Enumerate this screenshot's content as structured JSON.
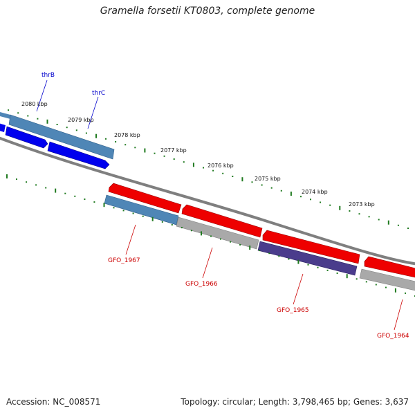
{
  "title": "Gramella forsetii KT0803, complete genome",
  "footer": {
    "accession": "Accession: NC_008571",
    "summary": "Topology: circular; Length: 3,798,465 bp; Genes: 3,637"
  },
  "colors": {
    "backbone": "#7f7f7f",
    "tick_major": "#1f7a1f",
    "forward_cds": "#0000ee",
    "forward_rna": "#4f86b6",
    "reverse_cds": "#ee0000",
    "reverse_other": "#a9a9a9",
    "reverse_purple": "#4a3c8c",
    "label_forward": "#0000cc",
    "label_reverse": "#cc0000"
  },
  "scale_labels": [
    "2080 kbp",
    "2079 kbp",
    "2078 kbp",
    "2077 kbp",
    "2076 kbp",
    "2075 kbp",
    "2074 kbp",
    "2073 kbp"
  ],
  "gene_labels": {
    "forward": [
      "thrB",
      "thrC"
    ],
    "reverse": [
      "GFO_1967",
      "GFO_1966",
      "GFO_1965",
      "GFO_1964"
    ]
  }
}
